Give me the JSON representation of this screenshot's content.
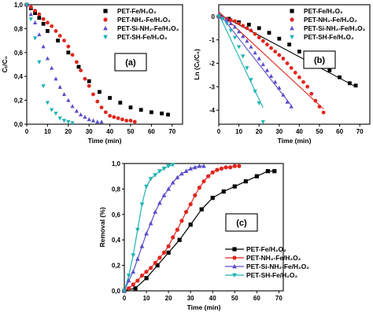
{
  "colors": {
    "fe": "#000000",
    "nh2": "#e0261d",
    "sinh2": "#5b4fc9",
    "sh": "#1fb3b3"
  },
  "chart_data": [
    {
      "id": "a",
      "type": "scatter",
      "panel_label": "(a)",
      "xlabel": "Time (min)",
      "ylabel": "Cₜ/C₀",
      "xlim": [
        0,
        75
      ],
      "ylim": [
        0,
        1
      ],
      "x_ticks": [
        "0",
        "10",
        "20",
        "30",
        "40",
        "50",
        "60",
        "70"
      ],
      "y_ticks": [
        "0,0",
        "0,2",
        "0,4",
        "0,6",
        "0,8",
        "1,0"
      ],
      "grid": false,
      "legend_position": "top-right",
      "series": [
        {
          "name": "PET-Fe/H₂O₂",
          "marker": "square",
          "color": "#000000",
          "x": [
            0,
            2,
            4,
            6,
            8,
            10,
            15,
            20,
            25,
            30,
            35,
            40,
            45,
            50,
            55,
            60,
            65,
            68
          ],
          "y": [
            1.0,
            0.97,
            0.93,
            0.89,
            0.84,
            0.78,
            0.7,
            0.6,
            0.48,
            0.36,
            0.27,
            0.22,
            0.18,
            0.14,
            0.12,
            0.1,
            0.09,
            0.08
          ]
        },
        {
          "name": "PET-NH₂-Fe/H₂O₂",
          "marker": "circle",
          "color": "#e0261d",
          "x": [
            0,
            2,
            4,
            6,
            8,
            10,
            12,
            14,
            16,
            18,
            20,
            22,
            24,
            26,
            28,
            30,
            32,
            34,
            36,
            38,
            40,
            42,
            44,
            46,
            48,
            50,
            52
          ],
          "y": [
            1.0,
            0.98,
            0.95,
            0.92,
            0.88,
            0.85,
            0.82,
            0.78,
            0.74,
            0.7,
            0.65,
            0.58,
            0.52,
            0.45,
            0.38,
            0.32,
            0.25,
            0.19,
            0.14,
            0.1,
            0.07,
            0.06,
            0.05,
            0.04,
            0.03,
            0.03,
            0.02
          ]
        },
        {
          "name": "PET-Si-NH₂-Fe/H₂O₂",
          "marker": "triangle-up",
          "color": "#5b4fc9",
          "x": [
            0,
            2,
            4,
            6,
            8,
            10,
            12,
            14,
            16,
            18,
            20,
            22,
            24,
            26,
            28,
            30,
            32,
            34,
            36
          ],
          "y": [
            1.0,
            0.92,
            0.85,
            0.75,
            0.65,
            0.55,
            0.47,
            0.38,
            0.31,
            0.25,
            0.2,
            0.15,
            0.11,
            0.08,
            0.06,
            0.04,
            0.03,
            0.02,
            0.02
          ]
        },
        {
          "name": "PET-SH-Fe/H₂O₂",
          "marker": "triangle-down",
          "color": "#1fb3b3",
          "x": [
            0,
            2,
            4,
            6,
            8,
            10,
            12,
            14,
            16,
            18,
            20,
            22
          ],
          "y": [
            1.0,
            0.88,
            0.72,
            0.52,
            0.32,
            0.18,
            0.12,
            0.09,
            0.05,
            0.03,
            0.02,
            0.01
          ]
        }
      ]
    },
    {
      "id": "b",
      "type": "scatter",
      "panel_label": "(b)",
      "xlabel": "Time (min)",
      "ylabel": "Ln (Cₜ/C₀)",
      "xlim": [
        0,
        75
      ],
      "ylim": [
        -4.6,
        0.5
      ],
      "x_ticks": [
        "0",
        "10",
        "20",
        "30",
        "40",
        "50",
        "60",
        "70"
      ],
      "y_ticks": [
        "-4",
        "-3",
        "-2",
        "-1",
        "0"
      ],
      "grid": false,
      "legend_position": "top-right",
      "series": [
        {
          "name": "PET-Fe/H₂O₂",
          "marker": "square",
          "color": "#000000",
          "x": [
            0,
            5,
            10,
            15,
            20,
            25,
            30,
            35,
            40,
            45,
            50,
            55,
            60,
            65,
            68
          ],
          "y": [
            0,
            -0.1,
            -0.25,
            -0.35,
            -0.5,
            -0.7,
            -0.95,
            -1.2,
            -1.5,
            -1.75,
            -2.0,
            -2.3,
            -2.6,
            -2.85,
            -2.95
          ],
          "fit": [
            [
              0,
              0.1
            ],
            [
              68,
              -3.0
            ]
          ]
        },
        {
          "name": "PET-NH₂-Fe/H₂O₂",
          "marker": "circle",
          "color": "#e0261d",
          "x": [
            0,
            2,
            4,
            6,
            8,
            10,
            12,
            14,
            16,
            18,
            20,
            22,
            24,
            26,
            28,
            30,
            32,
            34,
            36,
            38,
            40,
            42,
            44,
            46,
            48,
            50,
            52
          ],
          "y": [
            0,
            -0.05,
            -0.1,
            -0.15,
            -0.2,
            -0.3,
            -0.4,
            -0.5,
            -0.6,
            -0.75,
            -0.9,
            -1.05,
            -1.2,
            -1.35,
            -1.5,
            -1.65,
            -1.8,
            -2.0,
            -2.2,
            -2.4,
            -2.6,
            -2.8,
            -3.0,
            -3.3,
            -3.6,
            -3.85,
            -4.1
          ],
          "fit": [
            [
              0,
              0.2
            ],
            [
              52,
              -3.95
            ]
          ]
        },
        {
          "name": "PET-Si-NH₂-Fe/H₂O₂",
          "marker": "triangle-up",
          "color": "#5b4fc9",
          "x": [
            0,
            2,
            4,
            6,
            8,
            10,
            12,
            14,
            16,
            18,
            20,
            22,
            24,
            26,
            28,
            30,
            32,
            34,
            36
          ],
          "y": [
            0,
            -0.05,
            -0.15,
            -0.3,
            -0.45,
            -0.65,
            -0.85,
            -1.05,
            -1.3,
            -1.55,
            -1.8,
            -2.05,
            -2.3,
            -2.55,
            -2.8,
            -3.05,
            -3.35,
            -3.65,
            -3.85
          ],
          "fit": [
            [
              0,
              0.15
            ],
            [
              36,
              -3.8
            ]
          ]
        },
        {
          "name": "PET-SH-Fe/H₂O₂",
          "marker": "triangle-down",
          "color": "#1fb3b3",
          "x": [
            0,
            2,
            4,
            6,
            8,
            10,
            12,
            14,
            16,
            18,
            20,
            22
          ],
          "y": [
            0,
            -0.1,
            -0.3,
            -0.6,
            -0.9,
            -1.3,
            -1.7,
            -2.2,
            -2.7,
            -3.2,
            -3.7,
            -4.5
          ],
          "fit": [
            [
              0,
              0.1
            ],
            [
              22,
              -3.9
            ]
          ]
        }
      ]
    },
    {
      "id": "c",
      "type": "line",
      "panel_label": "(c)",
      "xlabel": "Time (min)",
      "ylabel": "Removal (%)",
      "xlim": [
        0,
        72
      ],
      "ylim": [
        0,
        1
      ],
      "x_ticks": [
        "0",
        "10",
        "20",
        "30",
        "40",
        "50",
        "60",
        "70"
      ],
      "y_ticks": [
        "0,0",
        "0,2",
        "0,4",
        "0,6",
        "0,8",
        "1,0"
      ],
      "grid": false,
      "legend_position": "bottom-right",
      "series": [
        {
          "name": "PET-Fe/H₂O₂",
          "marker": "square",
          "color": "#000000",
          "x": [
            0,
            5,
            10,
            15,
            20,
            25,
            30,
            35,
            40,
            45,
            50,
            55,
            60,
            65,
            68
          ],
          "y": [
            0,
            0.02,
            0.1,
            0.2,
            0.3,
            0.4,
            0.52,
            0.64,
            0.73,
            0.78,
            0.82,
            0.86,
            0.9,
            0.94,
            0.94
          ]
        },
        {
          "name": "PET-NH₂-Fe/H₂O₂",
          "marker": "circle",
          "color": "#e0261d",
          "x": [
            0,
            2,
            4,
            6,
            8,
            10,
            12,
            14,
            16,
            18,
            20,
            22,
            24,
            26,
            28,
            30,
            32,
            34,
            36,
            38,
            40,
            42,
            44,
            46,
            48,
            50,
            52
          ],
          "y": [
            0,
            0.02,
            0.05,
            0.08,
            0.12,
            0.15,
            0.18,
            0.22,
            0.26,
            0.3,
            0.35,
            0.42,
            0.48,
            0.55,
            0.62,
            0.68,
            0.75,
            0.81,
            0.86,
            0.9,
            0.93,
            0.95,
            0.96,
            0.97,
            0.97,
            0.98,
            0.98
          ]
        },
        {
          "name": "PET-Si-NH₂-Fe/H₂O₂",
          "marker": "triangle-up",
          "color": "#5b4fc9",
          "x": [
            0,
            2,
            4,
            6,
            8,
            10,
            12,
            14,
            16,
            18,
            20,
            22,
            24,
            26,
            28,
            30,
            32,
            34,
            36
          ],
          "y": [
            0,
            0.08,
            0.15,
            0.25,
            0.35,
            0.45,
            0.53,
            0.62,
            0.69,
            0.75,
            0.8,
            0.85,
            0.89,
            0.92,
            0.94,
            0.96,
            0.97,
            0.98,
            0.98
          ]
        },
        {
          "name": "PET-SH-Fe/H₂O₂",
          "marker": "triangle-down",
          "color": "#1fb3b3",
          "x": [
            0,
            2,
            4,
            6,
            8,
            10,
            12,
            14,
            16,
            18,
            20,
            22
          ],
          "y": [
            0,
            0.12,
            0.28,
            0.48,
            0.68,
            0.82,
            0.88,
            0.91,
            0.94,
            0.96,
            0.98,
            0.99
          ]
        }
      ]
    }
  ]
}
